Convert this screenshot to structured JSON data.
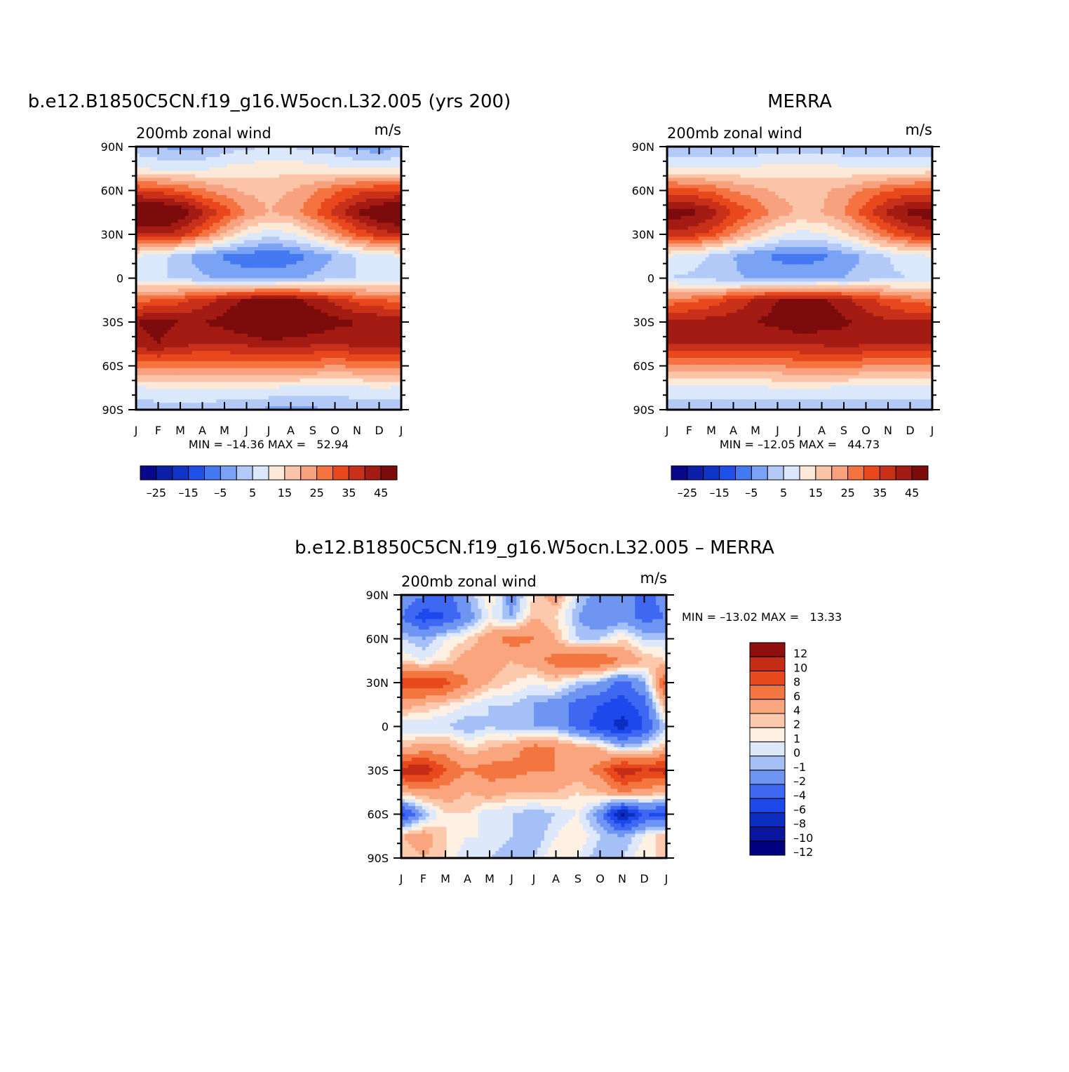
{
  "palettes": {
    "main": [
      "#08088c",
      "#0c1fa8",
      "#0f35c6",
      "#1f50e8",
      "#4479f2",
      "#7aa3f5",
      "#b3c9f7",
      "#dbe8fb",
      "#fde9d8",
      "#fbc4a8",
      "#f8a17f",
      "#f47340",
      "#e8481c",
      "#c8301a",
      "#a31b12",
      "#7c0b0b"
    ],
    "diff": [
      "#000080",
      "#08169e",
      "#0c2ec0",
      "#1c48ec",
      "#3e68f2",
      "#6f95f3",
      "#a5c0f6",
      "#dde9fb",
      "#fef0e2",
      "#fcc9ad",
      "#f9a57e",
      "#f37640",
      "#e8491c",
      "#c62d16",
      "#8f0e0e"
    ]
  },
  "panels": [
    {
      "title": "b.e12.B1850C5CN.f19_g16.W5ocn.L32.005 (yrs 200)",
      "subtitle_left": "200mb zonal wind",
      "subtitle_right": "m/s",
      "stats": "MIN = –14.36 MAX =   52.94",
      "colorbar_labels": [
        "–25",
        "–15",
        "–5",
        "5",
        "15",
        "25",
        "35",
        "45"
      ]
    },
    {
      "title": "MERRA",
      "subtitle_left": "200mb zonal wind",
      "subtitle_right": "m/s",
      "stats": "MIN = –12.05 MAX =   44.73",
      "colorbar_labels": [
        "–25",
        "–15",
        "–5",
        "5",
        "15",
        "25",
        "35",
        "45"
      ]
    },
    {
      "title": "b.e12.B1850C5CN.f19_g16.W5ocn.L32.005 – MERRA",
      "subtitle_left": "200mb zonal wind",
      "subtitle_right": "m/s",
      "stats": "MIN = –13.02 MAX =   13.33",
      "colorbar_labels": [
        "12",
        "10",
        "8",
        "6",
        "4",
        "2",
        "1",
        "0",
        "–1",
        "–2",
        "–4",
        "–6",
        "–8",
        "–10",
        "–12"
      ]
    }
  ],
  "chart_data": [
    {
      "type": "heatmap",
      "title": "b.e12.B1850C5CN.f19_g16.W5ocn.L32.005 (yrs 200)",
      "subtitle": "200mb zonal wind",
      "units": "m/s",
      "x": [
        "J",
        "F",
        "M",
        "A",
        "M",
        "J",
        "J",
        "A",
        "S",
        "O",
        "N",
        "D",
        "J"
      ],
      "y": [
        "90N",
        "60N",
        "30N",
        "0",
        "30S",
        "60S",
        "90S"
      ],
      "min": -14.36,
      "max": 52.94,
      "levels": [
        -30,
        -25,
        -20,
        -15,
        -10,
        -5,
        0,
        5,
        10,
        15,
        20,
        25,
        30,
        35,
        40,
        45,
        50
      ],
      "values": [
        [
          -3,
          -5,
          -7,
          -6,
          -3,
          -1,
          0,
          0,
          -2,
          -4,
          -7,
          -9,
          -3
        ],
        [
          5,
          4,
          3,
          4,
          6,
          7,
          8,
          8,
          7,
          6,
          5,
          5,
          5
        ],
        [
          30,
          28,
          25,
          21,
          17,
          14,
          13,
          15,
          19,
          24,
          28,
          30,
          30
        ],
        [
          48,
          50,
          45,
          36,
          28,
          20,
          15,
          17,
          24,
          32,
          40,
          46,
          48
        ],
        [
          35,
          36,
          32,
          24,
          14,
          6,
          2,
          4,
          10,
          18,
          26,
          32,
          35
        ],
        [
          5,
          2,
          -3,
          -8,
          -11,
          -13,
          -14,
          -13,
          -9,
          -5,
          0,
          3,
          5
        ],
        [
          2,
          1,
          -1,
          -4,
          -6,
          -7,
          -7,
          -6,
          -4,
          -2,
          0,
          1,
          2
        ],
        [
          24,
          25,
          28,
          32,
          37,
          41,
          43,
          42,
          38,
          33,
          28,
          25,
          24
        ],
        [
          40,
          42,
          40,
          40,
          42,
          46,
          50,
          48,
          45,
          42,
          40,
          40,
          40
        ],
        [
          38,
          40,
          37,
          35,
          35,
          36,
          38,
          37,
          36,
          35,
          37,
          38,
          38
        ],
        [
          22,
          22,
          21,
          21,
          22,
          22,
          23,
          22,
          21,
          20,
          21,
          22,
          22
        ],
        [
          4,
          5,
          6,
          6,
          5,
          5,
          5,
          4,
          4,
          3,
          4,
          5,
          4
        ],
        [
          -4,
          -3,
          -2,
          -3,
          -4,
          -5,
          -6,
          -7,
          -6,
          -5,
          -4,
          -4,
          -4
        ]
      ]
    },
    {
      "type": "heatmap",
      "title": "MERRA",
      "subtitle": "200mb zonal wind",
      "units": "m/s",
      "x": [
        "J",
        "F",
        "M",
        "A",
        "M",
        "J",
        "J",
        "A",
        "S",
        "O",
        "N",
        "D",
        "J"
      ],
      "y": [
        "90N",
        "60N",
        "30N",
        "0",
        "30S",
        "60S",
        "90S"
      ],
      "min": -12.05,
      "max": 44.73,
      "values": [
        [
          -5,
          -5,
          -5,
          -5,
          -4,
          -3,
          -3,
          -3,
          -4,
          -5,
          -5,
          -5,
          -5
        ],
        [
          6,
          5,
          5,
          5,
          6,
          7,
          7,
          7,
          6,
          5,
          5,
          6,
          6
        ],
        [
          28,
          27,
          24,
          20,
          17,
          14,
          13,
          14,
          17,
          21,
          25,
          27,
          28
        ],
        [
          43,
          42,
          38,
          30,
          24,
          18,
          14,
          15,
          20,
          28,
          36,
          42,
          43
        ],
        [
          33,
          32,
          28,
          20,
          12,
          6,
          3,
          4,
          9,
          16,
          24,
          30,
          33
        ],
        [
          5,
          3,
          -1,
          -5,
          -9,
          -11,
          -12,
          -11,
          -8,
          -4,
          0,
          3,
          5
        ],
        [
          0,
          -1,
          -2,
          -4,
          -6,
          -7,
          -7,
          -6,
          -5,
          -3,
          -1,
          0,
          0
        ],
        [
          22,
          23,
          27,
          31,
          36,
          40,
          41,
          41,
          37,
          32,
          27,
          23,
          22
        ],
        [
          37,
          37,
          37,
          38,
          40,
          42,
          44,
          43,
          41,
          38,
          36,
          36,
          37
        ],
        [
          36,
          36,
          36,
          35,
          35,
          35,
          36,
          36,
          37,
          36,
          35,
          35,
          36
        ],
        [
          20,
          19,
          19,
          19,
          20,
          20,
          21,
          21,
          22,
          20,
          19,
          19,
          20
        ],
        [
          4,
          4,
          4,
          4,
          4,
          5,
          5,
          5,
          4,
          4,
          4,
          4,
          4
        ],
        [
          -4,
          -4,
          -4,
          -4,
          -4,
          -5,
          -5,
          -5,
          -4,
          -4,
          -4,
          -4,
          -4
        ]
      ]
    },
    {
      "type": "heatmap",
      "title": "b.e12.B1850C5CN.f19_g16.W5ocn.L32.005 – MERRA",
      "subtitle": "200mb zonal wind",
      "units": "m/s",
      "x": [
        "J",
        "F",
        "M",
        "A",
        "M",
        "J",
        "J",
        "A",
        "S",
        "O",
        "N",
        "D",
        "J"
      ],
      "y": [
        "90N",
        "60N",
        "30N",
        "0",
        "30S",
        "60S",
        "90S"
      ],
      "min": -13.02,
      "max": 13.33,
      "levels": [
        -12,
        -10,
        -8,
        -6,
        -4,
        -2,
        -1,
        0,
        1,
        2,
        4,
        6,
        8,
        10,
        12
      ],
      "values": [
        [
          -2,
          -4,
          -5,
          -2,
          1,
          -3,
          1,
          3,
          -1,
          -3,
          -2,
          -6,
          -2
        ],
        [
          -4,
          -7,
          -6,
          -3,
          0,
          -2,
          2,
          1,
          -2,
          -4,
          -3,
          -5,
          -4
        ],
        [
          -1,
          -2,
          0,
          1,
          3,
          5,
          4,
          2,
          -1,
          -1,
          1,
          -1,
          -1
        ],
        [
          1,
          0,
          1,
          3,
          3,
          2,
          3,
          5,
          6,
          6,
          4,
          2,
          1
        ],
        [
          7,
          8,
          7,
          4,
          2,
          1,
          0,
          1,
          -1,
          -2,
          -5,
          -2,
          7
        ],
        [
          3,
          2,
          1,
          0,
          -1,
          -1,
          -2,
          -3,
          -5,
          -6,
          -7,
          -5,
          3
        ],
        [
          -1,
          -1,
          -1,
          -2,
          -1,
          -2,
          -2,
          -2,
          -5,
          -7,
          -9,
          -6,
          -1
        ],
        [
          2,
          3,
          3,
          1,
          2,
          3,
          5,
          4,
          3,
          2,
          -1,
          0,
          2
        ],
        [
          9,
          10,
          6,
          4,
          5,
          5,
          4,
          4,
          3,
          5,
          10,
          8,
          9
        ],
        [
          2,
          3,
          3,
          2,
          3,
          2,
          2,
          2,
          1,
          2,
          4,
          3,
          2
        ],
        [
          -7,
          -2,
          1,
          1,
          -1,
          -1,
          -2,
          -1,
          0,
          -3,
          -11,
          -6,
          -7
        ],
        [
          2,
          3,
          1,
          0,
          0,
          -1,
          -2,
          0,
          1,
          -1,
          -2,
          0,
          2
        ],
        [
          1,
          2,
          1,
          -1,
          -1,
          -2,
          -1,
          1,
          0,
          -2,
          -1,
          1,
          1
        ]
      ]
    }
  ]
}
